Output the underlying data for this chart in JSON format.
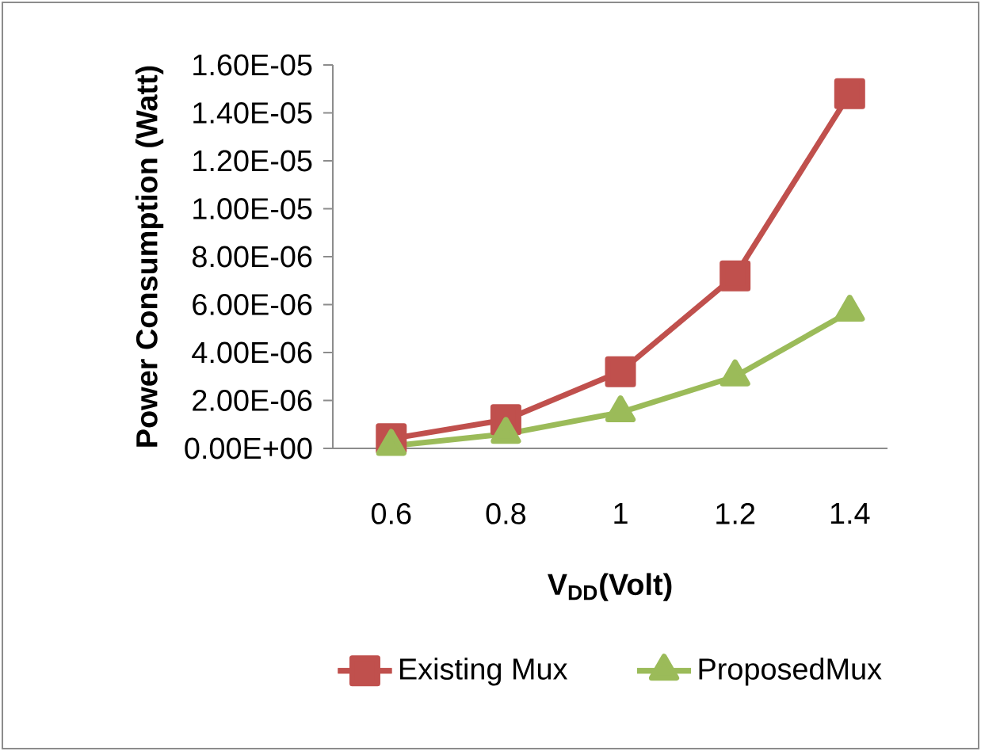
{
  "chart_data": {
    "type": "line",
    "xlabel": "V$_{DD}$(Volt)",
    "ylabel": "Power Consumption (Watt)",
    "categories": [
      "0.6",
      "0.8",
      "1",
      "1.2",
      "1.4"
    ],
    "series": [
      {
        "name": "Existing Mux",
        "color": "#c0504d",
        "marker": "square",
        "values": [
          4e-07,
          1.2e-06,
          3.2e-06,
          7.2e-06,
          1.48e-05
        ]
      },
      {
        "name": "ProposedMux",
        "color": "#9bbb59",
        "marker": "triangle",
        "values": [
          1e-07,
          6e-07,
          1.5e-06,
          3e-06,
          5.7e-06
        ]
      }
    ],
    "ylim": [
      0,
      1.6e-05
    ],
    "yticks": [
      {
        "value": 0,
        "label": "0.00E+00"
      },
      {
        "value": 2e-06,
        "label": "2.00E-06"
      },
      {
        "value": 4e-06,
        "label": "4.00E-06"
      },
      {
        "value": 6e-06,
        "label": "6.00E-06"
      },
      {
        "value": 8e-06,
        "label": "8.00E-06"
      },
      {
        "value": 1e-05,
        "label": "1.00E-05"
      },
      {
        "value": 1.2e-05,
        "label": "1.20E-05"
      },
      {
        "value": 1.4e-05,
        "label": "1.40E-05"
      },
      {
        "value": 1.6e-05,
        "label": "1.60E-05"
      }
    ],
    "grid": false,
    "legend": "bottom",
    "line_style": "solid"
  }
}
